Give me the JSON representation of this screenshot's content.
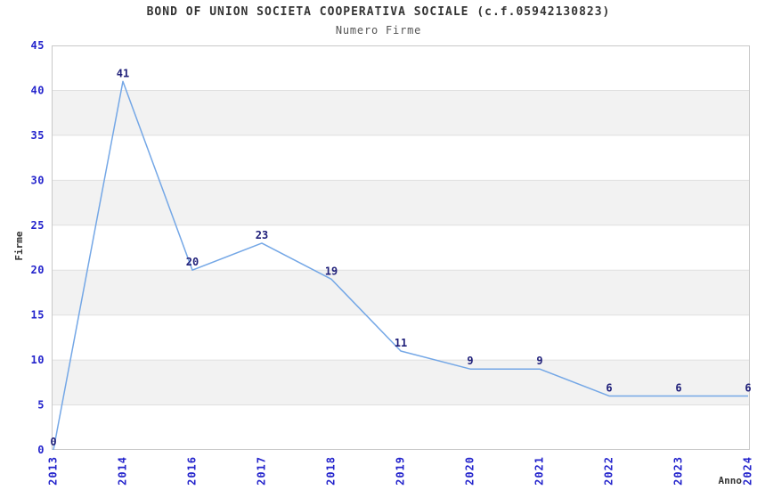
{
  "chart_data": {
    "type": "line",
    "title": "BOND OF UNION SOCIETA COOPERATIVA SOCIALE (c.f.05942130823)",
    "subtitle": "Numero Firme",
    "xlabel": "Anno",
    "ylabel": "Firme",
    "categories": [
      "2013",
      "2014",
      "2016",
      "2017",
      "2018",
      "2019",
      "2020",
      "2021",
      "2022",
      "2023",
      "2024"
    ],
    "values": [
      0,
      41,
      20,
      23,
      19,
      11,
      9,
      9,
      6,
      6,
      6
    ],
    "ylim": [
      0,
      45
    ],
    "ytick_step": 5,
    "yticks": [
      0,
      5,
      10,
      15,
      20,
      25,
      30,
      35,
      40,
      45
    ],
    "grid": true,
    "alternating_bands": true,
    "legend": "none",
    "colors": {
      "background": "#ffffff",
      "line": "#74a7e6",
      "band": "#f2f2f2",
      "grid": "#e0e0e0",
      "border": "#c9c9c9",
      "tick_label": "#2424cc",
      "data_label": "#20207a",
      "title": "#333333",
      "subtitle": "#555555",
      "axis_title": "#333333"
    }
  }
}
